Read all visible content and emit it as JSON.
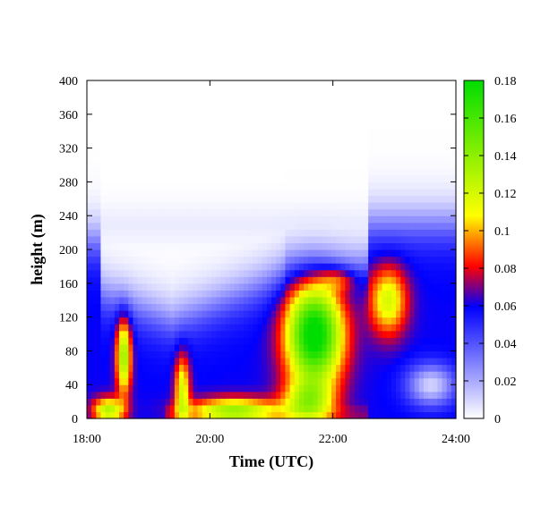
{
  "chart_data": {
    "type": "heatmap",
    "title": "",
    "xlabel": "Time (UTC)",
    "ylabel": "height (m)",
    "x_ticks": [
      "18:00",
      "20:00",
      "22:00",
      "24:00"
    ],
    "y_ticks": [
      "0",
      "40",
      "80",
      "120",
      "160",
      "200",
      "240",
      "280",
      "320",
      "360",
      "400"
    ],
    "xlim": [
      18,
      24
    ],
    "ylim": [
      0,
      400
    ],
    "colorbar": {
      "range": [
        0,
        0.18
      ],
      "ticks": [
        "0",
        "0.02",
        "0.04",
        "0.06",
        "0.08",
        "0.1",
        "0.12",
        "0.14",
        "0.16",
        "0.18"
      ]
    },
    "features": [
      {
        "time_h": 18.6,
        "height_m": 75,
        "peak_value": 0.12
      },
      {
        "time_h": 18.35,
        "height_m": 10,
        "peak_value": 0.13
      },
      {
        "time_h": 19.55,
        "height_m": 30,
        "peak_value": 0.11
      },
      {
        "time_h": 20.5,
        "height_m": 10,
        "peak_value": 0.13
      },
      {
        "time_h": 21.7,
        "height_m": 100,
        "peak_value": 0.18
      },
      {
        "time_h": 22.9,
        "height_m": 140,
        "peak_value": 0.12
      }
    ]
  }
}
